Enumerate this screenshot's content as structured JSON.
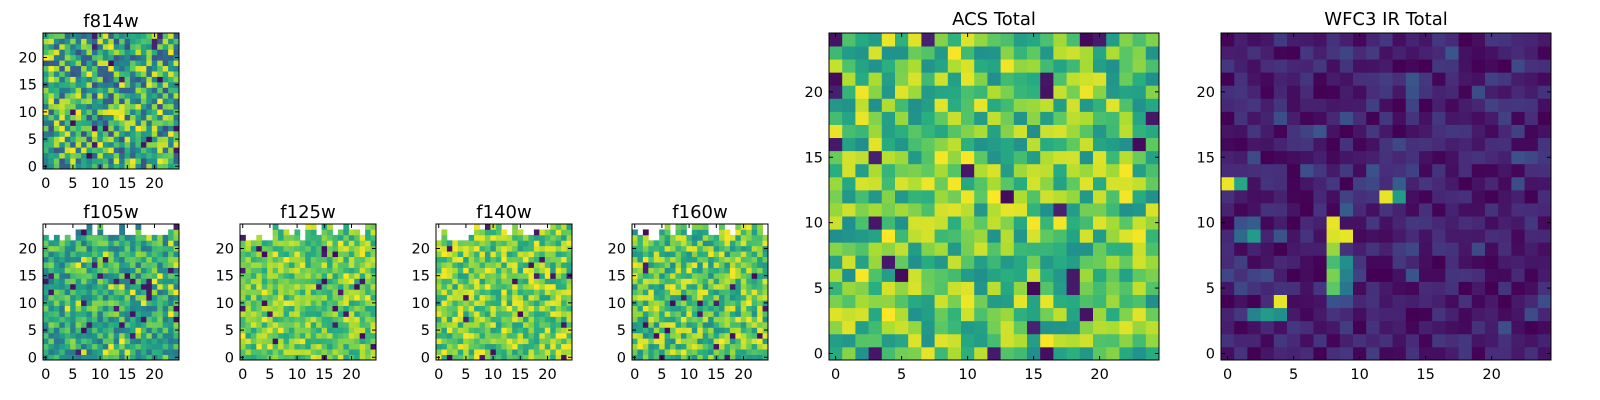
{
  "chart_data": [
    {
      "id": "f814w",
      "type": "heatmap",
      "title": "f814w",
      "colormap": "viridis",
      "xlim": [
        -0.5,
        24.5
      ],
      "ylim": [
        -0.5,
        24.5
      ],
      "xticks": [
        0,
        5,
        10,
        15,
        20
      ],
      "yticks": [
        0,
        5,
        10,
        15,
        20
      ],
      "tick_labels": {
        "x": [
          "0",
          "5",
          "10",
          "15",
          "20"
        ],
        "y": [
          "0",
          "5",
          "10",
          "15",
          "20"
        ]
      },
      "grid": false,
      "masked_region": "none",
      "seed": 11,
      "mean": 0.6,
      "spread": 0.2
    },
    {
      "id": "f105w",
      "type": "heatmap",
      "title": "f105w",
      "colormap": "viridis",
      "xlim": [
        -0.5,
        24.5
      ],
      "ylim": [
        -0.5,
        24.5
      ],
      "xticks": [
        0,
        5,
        10,
        15,
        20
      ],
      "yticks": [
        0,
        5,
        10,
        15,
        20
      ],
      "tick_labels": {
        "x": [
          "0",
          "5",
          "10",
          "15",
          "20"
        ],
        "y": [
          "0",
          "5",
          "10",
          "15",
          "20"
        ]
      },
      "grid": false,
      "masked_region": "top-edge",
      "seed": 23,
      "mean": 0.62,
      "spread": 0.13
    },
    {
      "id": "f125w",
      "type": "heatmap",
      "title": "f125w",
      "colormap": "viridis",
      "xlim": [
        -0.5,
        24.5
      ],
      "ylim": [
        -0.5,
        24.5
      ],
      "xticks": [
        0,
        5,
        10,
        15,
        20
      ],
      "yticks": [
        0,
        5,
        10,
        15,
        20
      ],
      "tick_labels": {
        "x": [
          "0",
          "5",
          "10",
          "15",
          "20"
        ],
        "y": [
          "0",
          "5",
          "10",
          "15",
          "20"
        ]
      },
      "grid": false,
      "masked_region": "top-edge",
      "seed": 37,
      "mean": 0.76,
      "spread": 0.1
    },
    {
      "id": "f140w",
      "type": "heatmap",
      "title": "f140w",
      "colormap": "viridis",
      "xlim": [
        -0.5,
        24.5
      ],
      "ylim": [
        -0.5,
        24.5
      ],
      "xticks": [
        0,
        5,
        10,
        15,
        20
      ],
      "yticks": [
        0,
        5,
        10,
        15,
        20
      ],
      "tick_labels": {
        "x": [
          "0",
          "5",
          "10",
          "15",
          "20"
        ],
        "y": [
          "0",
          "5",
          "10",
          "15",
          "20"
        ]
      },
      "grid": false,
      "masked_region": "top-edge",
      "seed": 41,
      "mean": 0.78,
      "spread": 0.12
    },
    {
      "id": "f160w",
      "type": "heatmap",
      "title": "f160w",
      "colormap": "viridis",
      "xlim": [
        -0.5,
        24.5
      ],
      "ylim": [
        -0.5,
        24.5
      ],
      "xticks": [
        0,
        5,
        10,
        15,
        20
      ],
      "yticks": [
        0,
        5,
        10,
        15,
        20
      ],
      "tick_labels": {
        "x": [
          "0",
          "5",
          "10",
          "15",
          "20"
        ],
        "y": [
          "0",
          "5",
          "10",
          "15",
          "20"
        ]
      },
      "grid": false,
      "masked_region": "top-edge",
      "seed": 53,
      "mean": 0.74,
      "spread": 0.14
    },
    {
      "id": "acs_total",
      "type": "heatmap",
      "title": "ACS Total",
      "colormap": "viridis",
      "xlim": [
        -0.5,
        24.5
      ],
      "ylim": [
        -0.5,
        24.5
      ],
      "xticks": [
        0,
        5,
        10,
        15,
        20
      ],
      "yticks": [
        0,
        5,
        10,
        15,
        20
      ],
      "tick_labels": {
        "x": [
          "0",
          "5",
          "10",
          "15",
          "20"
        ],
        "y": [
          "0",
          "5",
          "10",
          "15",
          "20"
        ]
      },
      "grid": false,
      "masked_region": "none",
      "seed": 67,
      "mean": 0.73,
      "spread": 0.13
    },
    {
      "id": "wfc3_ir_total",
      "type": "heatmap",
      "title": "WFC3 IR Total",
      "colormap": "viridis",
      "xlim": [
        -0.5,
        24.5
      ],
      "ylim": [
        -0.5,
        24.5
      ],
      "xticks": [
        0,
        5,
        10,
        15,
        20
      ],
      "yticks": [
        0,
        5,
        10,
        15,
        20
      ],
      "tick_labels": {
        "x": [
          "0",
          "5",
          "10",
          "15",
          "20"
        ],
        "y": [
          "0",
          "5",
          "10",
          "15",
          "20"
        ]
      },
      "grid": false,
      "masked_region": "none",
      "seed": 79,
      "mean": 0.08,
      "spread": 0.05,
      "bright_pixels": [
        {
          "col": 0,
          "row": 13,
          "value": 0.98
        },
        {
          "col": 1,
          "row": 13,
          "value": 0.6
        },
        {
          "col": 12,
          "row": 12,
          "value": 0.97
        },
        {
          "col": 13,
          "row": 12,
          "value": 0.55
        },
        {
          "col": 13,
          "row": 13,
          "value": 0.3
        },
        {
          "col": 8,
          "row": 5,
          "value": 0.75
        },
        {
          "col": 8,
          "row": 6,
          "value": 0.8
        },
        {
          "col": 8,
          "row": 7,
          "value": 0.7
        },
        {
          "col": 8,
          "row": 8,
          "value": 0.85
        },
        {
          "col": 8,
          "row": 9,
          "value": 0.95
        },
        {
          "col": 8,
          "row": 10,
          "value": 0.97
        },
        {
          "col": 9,
          "row": 9,
          "value": 0.97
        },
        {
          "col": 9,
          "row": 7,
          "value": 0.5
        },
        {
          "col": 9,
          "row": 6,
          "value": 0.45
        },
        {
          "col": 9,
          "row": 5,
          "value": 0.4
        },
        {
          "col": 9,
          "row": 11,
          "value": 0.3
        },
        {
          "col": 4,
          "row": 4,
          "value": 0.97
        },
        {
          "col": 3,
          "row": 3,
          "value": 0.55
        },
        {
          "col": 4,
          "row": 3,
          "value": 0.5
        },
        {
          "col": 2,
          "row": 3,
          "value": 0.45
        },
        {
          "col": 1,
          "row": 9,
          "value": 0.35
        },
        {
          "col": 2,
          "row": 9,
          "value": 0.55
        },
        {
          "col": 2,
          "row": 10,
          "value": 0.3
        },
        {
          "col": 1,
          "row": 10,
          "value": 0.25
        }
      ]
    }
  ]
}
